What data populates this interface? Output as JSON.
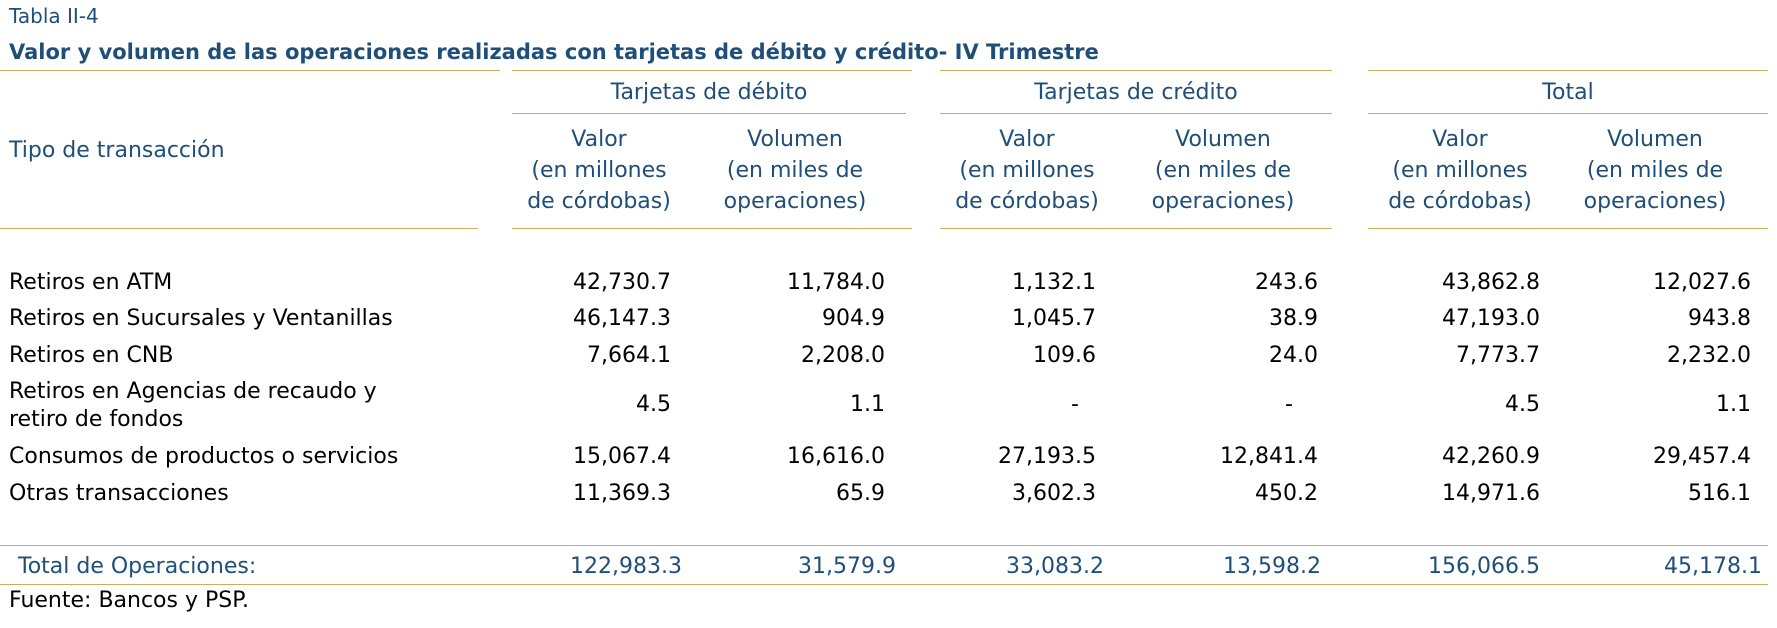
{
  "table_label": "Tabla II-4",
  "title": "Valor y volumen de las operaciones realizadas con tarjetas de débito y crédito- IV Trimestre",
  "row_header": "Tipo de transacción",
  "groups": [
    {
      "label": "Tarjetas de débito"
    },
    {
      "label": "Tarjetas de crédito"
    },
    {
      "label": "Total"
    }
  ],
  "subheaders": {
    "valor": [
      "Valor",
      "(en millones",
      "de córdobas)"
    ],
    "volumen": [
      "Volumen",
      "(en miles de",
      "operaciones)"
    ]
  },
  "rows": [
    {
      "label": [
        "Retiros en ATM"
      ],
      "values": [
        "42,730.7",
        "11,784.0",
        "1,132.1",
        "243.6",
        "43,862.8",
        "12,027.6"
      ]
    },
    {
      "label": [
        "Retiros en Sucursales y Ventanillas"
      ],
      "values": [
        "46,147.3",
        "904.9",
        "1,045.7",
        "38.9",
        "47,193.0",
        "943.8"
      ]
    },
    {
      "label": [
        "Retiros en CNB"
      ],
      "values": [
        "7,664.1",
        "2,208.0",
        "109.6",
        "24.0",
        "7,773.7",
        "2,232.0"
      ]
    },
    {
      "label": [
        "Retiros en Agencias de recaudo y",
        "retiro de fondos"
      ],
      "values": [
        "4.5",
        "1.1",
        "-",
        "-",
        "4.5",
        "1.1"
      ]
    },
    {
      "label": [
        "Consumos de productos o servicios"
      ],
      "values": [
        "15,067.4",
        "16,616.0",
        "27,193.5",
        "12,841.4",
        "42,260.9",
        "29,457.4"
      ]
    },
    {
      "label": [
        "Otras transacciones"
      ],
      "values": [
        "11,369.3",
        "65.9",
        "3,602.3",
        "450.2",
        "14,971.6",
        "516.1"
      ]
    }
  ],
  "total": {
    "label": "Total de Operaciones:",
    "values": [
      "122,983.3",
      "31,579.9",
      "33,083.2",
      "13,598.2",
      "156,066.5",
      "45,178.1"
    ]
  },
  "source": "Fuente: Bancos y PSP.",
  "colors": {
    "heading": "#1f4e79",
    "rule": "#c9ae5d",
    "body_text": "#000000"
  }
}
